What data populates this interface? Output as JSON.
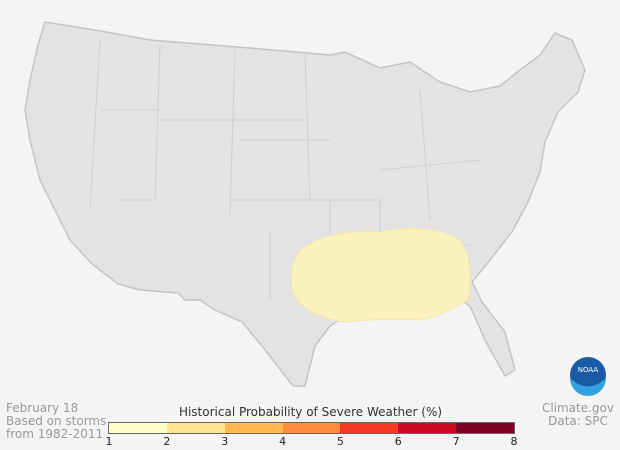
{
  "info": {
    "date": "February 18",
    "based_on": "Based on storms",
    "period": "from 1982-2011"
  },
  "credit": {
    "source": "Climate.gov",
    "data": "Data: SPC"
  },
  "legend": {
    "title": "Historical Probability of Severe Weather (%)",
    "ticks": [
      "1",
      "2",
      "3",
      "4",
      "5",
      "6",
      "7",
      "8"
    ],
    "colors": [
      "#ffffcc",
      "#ffe591",
      "#feb752",
      "#fd8d3c",
      "#f43c24",
      "#cc0a22",
      "#800026"
    ]
  },
  "map": {
    "land_color": "#e3e3e3",
    "border_color": "#c4c4c4",
    "probability_area_value": "1-2",
    "probability_area_color": "#fbf1bd"
  },
  "logo": {
    "text": "NOAA"
  }
}
